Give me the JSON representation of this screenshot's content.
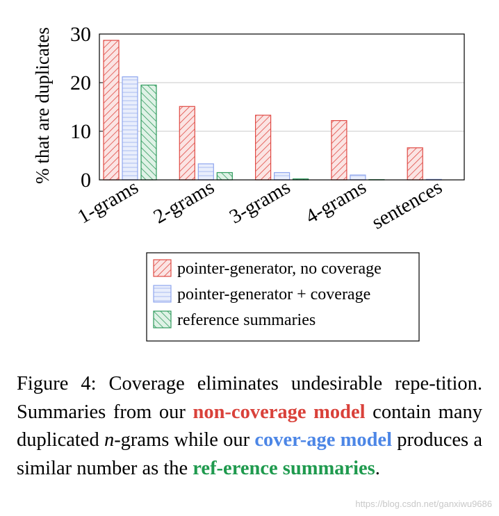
{
  "chart_data": {
    "type": "bar",
    "ylabel": "% that are duplicates",
    "xlabel": "",
    "ylim": [
      0,
      30
    ],
    "yticks": [
      "0",
      "10",
      "20",
      "30"
    ],
    "grid": "horizontal",
    "categories": [
      "1-grams",
      "2-grams",
      "3-grams",
      "4-grams",
      "sentences"
    ],
    "series": [
      {
        "name": "pointer-generator, no coverage",
        "values": [
          28.7,
          15.1,
          13.3,
          12.2,
          6.6
        ],
        "color": "#d9534f",
        "pattern": "diagonal-hatch"
      },
      {
        "name": "pointer-generator + coverage",
        "values": [
          21.2,
          3.3,
          1.5,
          1.0,
          0.1
        ],
        "color": "#6f8fe0",
        "pattern": "horizontal-lines"
      },
      {
        "name": "reference summaries",
        "values": [
          19.5,
          1.5,
          0.2,
          0.05,
          0.0
        ],
        "color": "#2e9a5c",
        "pattern": "diagonal-hatch"
      }
    ],
    "legend_position": "bottom"
  },
  "caption": {
    "part1": "Figure 4:  Coverage eliminates undesirable repe-tition. Summaries from our ",
    "red": "non-coverage model",
    "part2": " contain many duplicated ",
    "italic_n": "n",
    "part3": "-grams while our ",
    "blue": "cover-age model",
    "part4": " produces a similar number as the ",
    "green": "ref-erence summaries",
    "part5": "."
  },
  "watermark": "https://blog.csdn.net/ganxiwu9686"
}
